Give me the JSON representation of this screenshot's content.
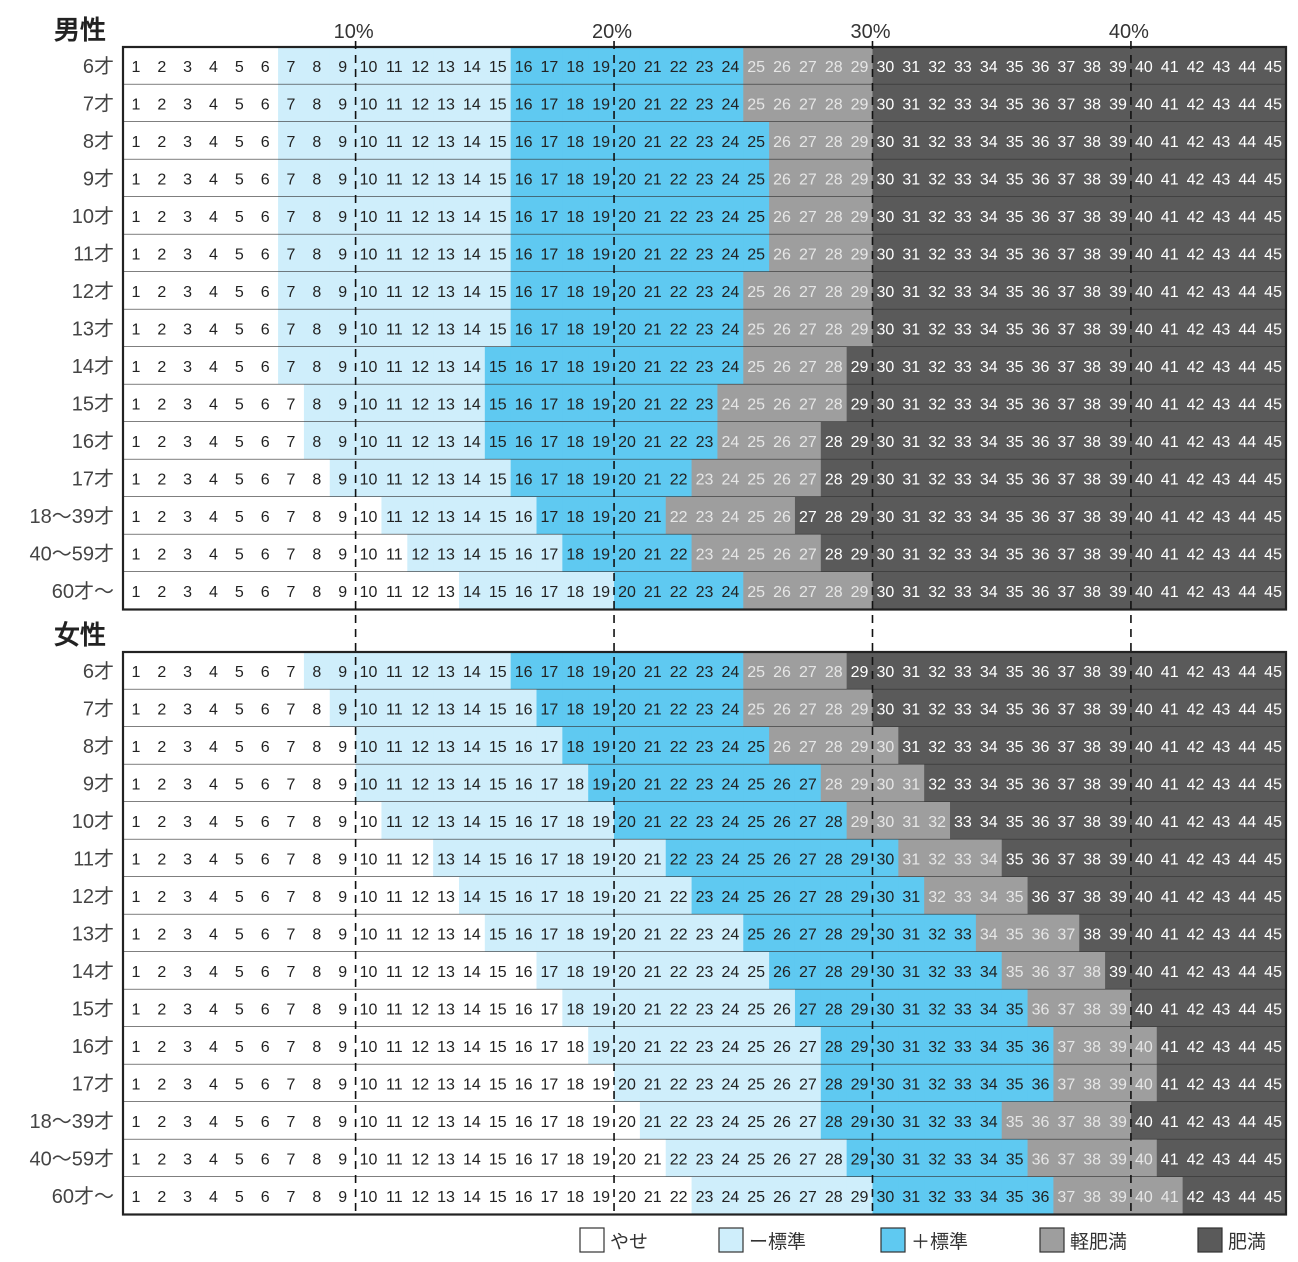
{
  "chart_data": {
    "type": "heatmap",
    "title": "",
    "xlabel": "",
    "ylabel": "",
    "percent_ticks": [
      "10%",
      "20%",
      "30%",
      "40%"
    ],
    "cells": [
      1,
      2,
      3,
      4,
      5,
      6,
      7,
      8,
      9,
      10,
      11,
      12,
      13,
      14,
      15,
      16,
      17,
      18,
      19,
      20,
      21,
      22,
      23,
      24,
      25,
      26,
      27,
      28,
      29,
      30,
      31,
      32,
      33,
      34,
      35,
      36,
      37,
      38,
      39,
      40,
      41,
      42,
      43,
      44,
      45
    ],
    "categories": [
      {
        "key": "yase",
        "label": "やせ",
        "color": "#ffffff"
      },
      {
        "key": "minus",
        "label": "ー標準",
        "color": "#cfeefb"
      },
      {
        "key": "plus",
        "label": "＋標準",
        "color": "#5fc9f1"
      },
      {
        "key": "mild",
        "label": "軽肥満",
        "color": "#9e9e9e"
      },
      {
        "key": "obese",
        "label": "肥満",
        "color": "#5a5a5a"
      }
    ],
    "groups": [
      {
        "name": "男性",
        "rows": [
          {
            "age": "6才",
            "starts": [
              7,
              16,
              25,
              30
            ]
          },
          {
            "age": "7才",
            "starts": [
              7,
              16,
              25,
              30
            ]
          },
          {
            "age": "8才",
            "starts": [
              7,
              16,
              26,
              30
            ]
          },
          {
            "age": "9才",
            "starts": [
              7,
              16,
              26,
              30
            ]
          },
          {
            "age": "10才",
            "starts": [
              7,
              16,
              26,
              30
            ]
          },
          {
            "age": "11才",
            "starts": [
              7,
              16,
              26,
              30
            ]
          },
          {
            "age": "12才",
            "starts": [
              7,
              16,
              25,
              30
            ]
          },
          {
            "age": "13才",
            "starts": [
              7,
              16,
              25,
              30
            ]
          },
          {
            "age": "14才",
            "starts": [
              7,
              15,
              25,
              29
            ]
          },
          {
            "age": "15才",
            "starts": [
              8,
              15,
              24,
              29
            ]
          },
          {
            "age": "16才",
            "starts": [
              8,
              15,
              24,
              28
            ]
          },
          {
            "age": "17才",
            "starts": [
              9,
              16,
              23,
              28
            ]
          },
          {
            "age": "18～39才",
            "starts": [
              11,
              17,
              22,
              27
            ]
          },
          {
            "age": "40～59才",
            "starts": [
              12,
              18,
              23,
              28
            ]
          },
          {
            "age": "60才～",
            "starts": [
              14,
              20,
              25,
              30
            ]
          }
        ]
      },
      {
        "name": "女性",
        "rows": [
          {
            "age": "6才",
            "starts": [
              8,
              16,
              25,
              29
            ]
          },
          {
            "age": "7才",
            "starts": [
              9,
              17,
              25,
              30
            ]
          },
          {
            "age": "8才",
            "starts": [
              10,
              18,
              26,
              31
            ]
          },
          {
            "age": "9才",
            "starts": [
              10,
              19,
              28,
              32
            ]
          },
          {
            "age": "10才",
            "starts": [
              11,
              20,
              29,
              33
            ]
          },
          {
            "age": "11才",
            "starts": [
              13,
              22,
              31,
              35
            ]
          },
          {
            "age": "12才",
            "starts": [
              14,
              23,
              32,
              36
            ]
          },
          {
            "age": "13才",
            "starts": [
              15,
              25,
              34,
              38
            ]
          },
          {
            "age": "14才",
            "starts": [
              17,
              26,
              35,
              39
            ]
          },
          {
            "age": "15才",
            "starts": [
              18,
              27,
              36,
              40
            ]
          },
          {
            "age": "16才",
            "starts": [
              19,
              28,
              37,
              41
            ]
          },
          {
            "age": "17才",
            "starts": [
              20,
              28,
              37,
              41
            ]
          },
          {
            "age": "18～39才",
            "starts": [
              21,
              28,
              35,
              40
            ]
          },
          {
            "age": "40～59才",
            "starts": [
              22,
              29,
              36,
              41
            ]
          },
          {
            "age": "60才～",
            "starts": [
              23,
              30,
              37,
              42
            ]
          }
        ]
      }
    ]
  }
}
